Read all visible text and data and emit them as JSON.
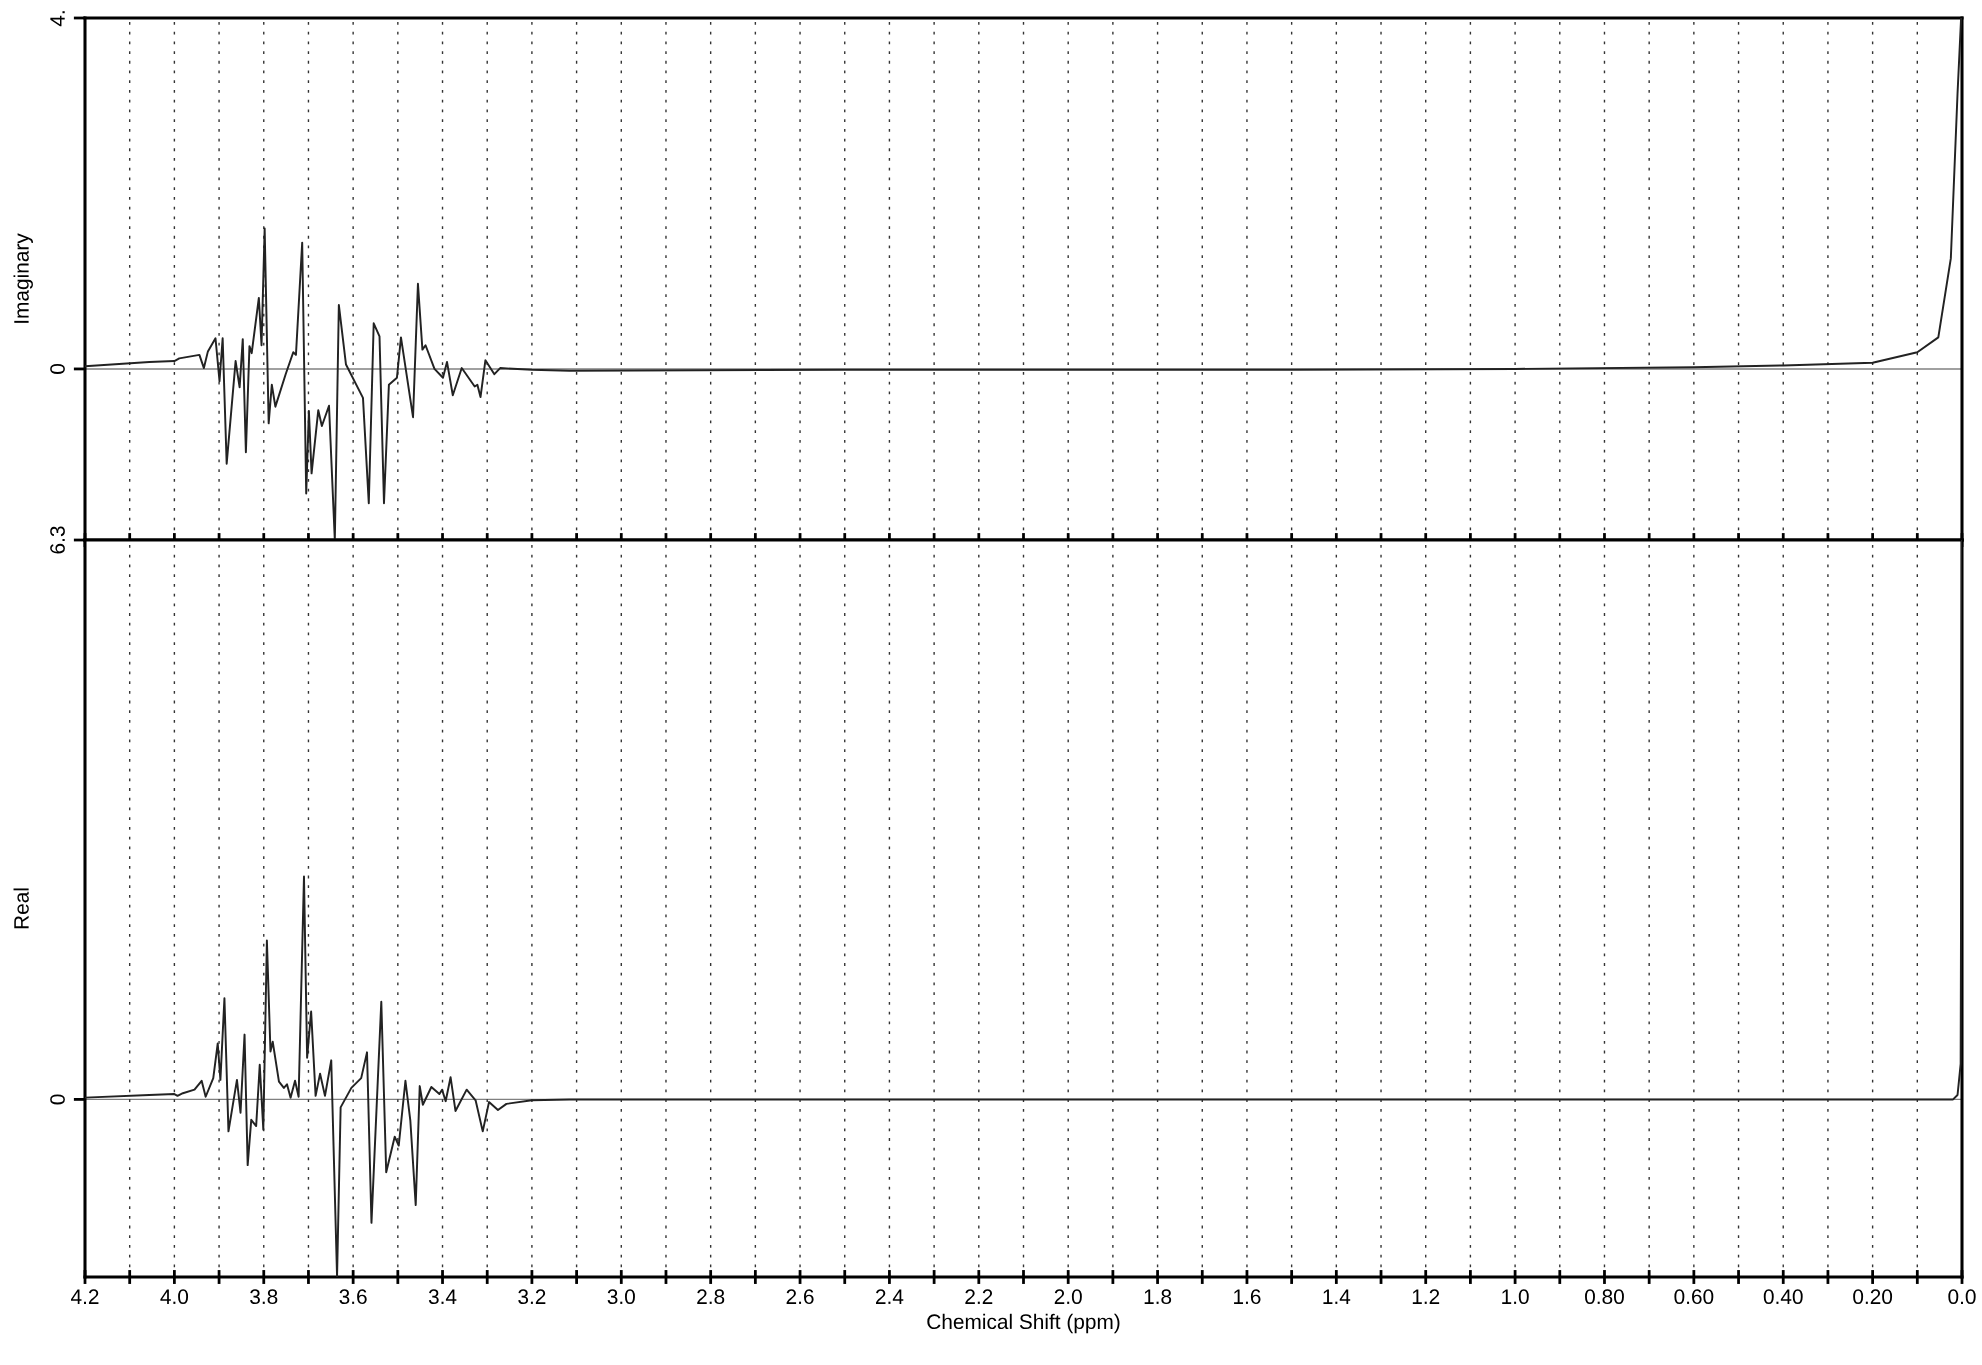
{
  "chart_data": [
    {
      "type": "line",
      "ylabel": "Imaginary",
      "xlim": [
        4.2,
        0.0
      ],
      "ylim": [
        -1.95,
        4
      ],
      "yticks": [
        {
          "value": 4,
          "label": "4."
        },
        0
      ],
      "xticks": [
        4.2,
        4.1,
        4.0,
        3.9,
        3.8,
        3.7,
        3.6,
        3.5,
        3.4,
        3.3,
        3.2,
        3.1,
        3.0,
        2.9,
        2.8,
        2.7,
        2.6,
        2.5,
        2.4,
        2.3,
        2.2,
        2.1,
        2.0,
        1.9,
        1.8,
        1.7,
        1.6,
        1.5,
        1.4,
        1.3,
        1.2,
        1.1,
        1.0,
        0.9,
        0.8,
        0.7,
        0.6,
        0.5,
        0.4,
        0.3,
        0.2,
        0.1,
        0.0
      ],
      "tick_labels": "y",
      "grid": "x",
      "line_style": "solid",
      "ref_lines": [
        {
          "axis": "y",
          "value": 0,
          "label": null,
          "color": "#808080"
        }
      ],
      "series": [
        {
          "color": "#222222",
          "x": [
            4.2,
            4.056,
            4.0,
            3.989,
            3.944,
            3.934,
            3.925,
            3.908,
            3.899,
            3.892,
            3.883,
            3.863,
            3.854,
            3.847,
            3.84,
            3.832,
            3.827,
            3.811,
            3.805,
            3.798,
            3.789,
            3.782,
            3.774,
            3.751,
            3.734,
            3.728,
            3.714,
            3.705,
            3.699,
            3.693,
            3.678,
            3.67,
            3.654,
            3.641,
            3.632,
            3.616,
            3.578,
            3.565,
            3.554,
            3.541,
            3.531,
            3.52,
            3.502,
            3.493,
            3.466,
            3.455,
            3.445,
            3.438,
            3.418,
            3.399,
            3.39,
            3.377,
            3.357,
            3.328,
            3.322,
            3.315,
            3.304,
            3.284,
            3.271,
            3.2,
            3.116,
            2.5,
            1.5,
            1.0,
            0.6,
            0.4,
            0.2,
            0.1,
            0.053,
            0.025,
            0.01,
            0.002
          ],
          "values": [
            0.03,
            0.08,
            0.09,
            0.12,
            0.16,
            0.01,
            0.2,
            0.35,
            -0.14,
            0.35,
            -1.08,
            0.09,
            -0.21,
            0.34,
            -0.95,
            0.26,
            0.18,
            0.81,
            0.27,
            1.6,
            -0.62,
            -0.18,
            -0.43,
            -0.06,
            0.19,
            0.16,
            1.44,
            -1.42,
            -0.48,
            -1.19,
            -0.47,
            -0.65,
            -0.42,
            -1.95,
            0.73,
            0.05,
            -0.33,
            -1.53,
            0.52,
            0.37,
            -1.53,
            -0.18,
            -0.1,
            0.36,
            -0.55,
            0.97,
            0.22,
            0.27,
            0.0,
            -0.1,
            0.08,
            -0.3,
            0.01,
            -0.2,
            -0.18,
            -0.32,
            0.1,
            -0.06,
            0.01,
            -0.01,
            -0.02,
            -0.01,
            -0.01,
            0.0,
            0.02,
            0.04,
            0.07,
            0.19,
            0.36,
            1.26,
            3.14,
            4
          ]
        }
      ]
    },
    {
      "type": "line",
      "ylabel": "Real",
      "xlabel": "Chemical Shift (ppm)",
      "xlim": [
        4.2,
        0.0
      ],
      "ylim": [
        -2.0,
        6.3
      ],
      "yticks": [
        6.3,
        0
      ],
      "xticks": [
        4.2,
        {
          "value": 4.1,
          "label": null
        },
        {
          "value": 4.0,
          "label": "4.0"
        },
        {
          "value": 3.9,
          "label": null
        },
        3.8,
        {
          "value": 3.7,
          "label": null
        },
        3.6,
        {
          "value": 3.5,
          "label": null
        },
        3.4,
        {
          "value": 3.3,
          "label": null
        },
        3.2,
        {
          "value": 3.1,
          "label": null
        },
        {
          "value": 3.0,
          "label": "3.0"
        },
        {
          "value": 2.9,
          "label": null
        },
        2.8,
        {
          "value": 2.7,
          "label": null
        },
        2.6,
        {
          "value": 2.5,
          "label": null
        },
        2.4,
        {
          "value": 2.3,
          "label": null
        },
        2.2,
        {
          "value": 2.1,
          "label": null
        },
        {
          "value": 2.0,
          "label": "2.0"
        },
        {
          "value": 1.9,
          "label": null
        },
        1.8,
        {
          "value": 1.7,
          "label": null
        },
        1.6,
        {
          "value": 1.5,
          "label": null
        },
        1.4,
        {
          "value": 1.3,
          "label": null
        },
        1.2,
        {
          "value": 1.1,
          "label": null
        },
        {
          "value": 1.0,
          "label": "1.0"
        },
        {
          "value": 0.9,
          "label": null
        },
        {
          "value": 0.8,
          "label": "0.80"
        },
        {
          "value": 0.7,
          "label": null
        },
        {
          "value": 0.6,
          "label": "0.60"
        },
        {
          "value": 0.5,
          "label": null
        },
        {
          "value": 0.4,
          "label": "0.40"
        },
        {
          "value": 0.3,
          "label": null
        },
        {
          "value": 0.2,
          "label": "0.20"
        },
        {
          "value": 0.1,
          "label": null
        },
        {
          "value": 0.0,
          "label": "0.0"
        }
      ],
      "grid": "x",
      "line_style": "solid",
      "ref_lines": [
        {
          "axis": "y",
          "value": 0,
          "label": null,
          "color": "#808080"
        }
      ],
      "series": [
        {
          "color": "#222222",
          "x": [
            4.2,
            4.056,
            4.0,
            3.993,
            3.981,
            3.955,
            3.939,
            3.93,
            3.913,
            3.903,
            3.897,
            3.888,
            3.879,
            3.86,
            3.852,
            3.843,
            3.836,
            3.828,
            3.817,
            3.809,
            3.801,
            3.793,
            3.785,
            3.78,
            3.766,
            3.755,
            3.748,
            3.74,
            3.73,
            3.722,
            3.71,
            3.703,
            3.694,
            3.684,
            3.674,
            3.663,
            3.649,
            3.636,
            3.628,
            3.604,
            3.582,
            3.569,
            3.559,
            3.537,
            3.526,
            3.507,
            3.498,
            3.483,
            3.472,
            3.46,
            3.451,
            3.444,
            3.425,
            3.407,
            3.401,
            3.393,
            3.382,
            3.371,
            3.346,
            3.326,
            3.31,
            3.296,
            3.276,
            3.257,
            3.2,
            3.116,
            1.5,
            0.02,
            0.01,
            0.005,
            0.003,
            0.0
          ],
          "values": [
            0.02,
            0.05,
            0.06,
            0.04,
            0.07,
            0.11,
            0.21,
            0.03,
            0.24,
            0.63,
            0.22,
            1.14,
            -0.36,
            0.22,
            -0.15,
            0.73,
            -0.74,
            -0.23,
            -0.3,
            0.39,
            -0.34,
            1.79,
            0.54,
            0.65,
            0.2,
            0.13,
            0.17,
            0.02,
            0.21,
            0.03,
            2.51,
            0.47,
            0.99,
            0.04,
            0.29,
            0.04,
            0.44,
            -1.99,
            -0.09,
            0.13,
            0.24,
            0.53,
            -1.39,
            1.1,
            -0.82,
            -0.42,
            -0.52,
            0.21,
            -0.24,
            -1.19,
            0.15,
            -0.06,
            0.14,
            0.06,
            0.11,
            -0.02,
            0.25,
            -0.13,
            0.11,
            -0.01,
            -0.36,
            -0.03,
            -0.12,
            -0.05,
            -0.01,
            0.0,
            0.0,
            0.0,
            0.05,
            0.3,
            0.4,
            6.3
          ]
        }
      ]
    }
  ]
}
